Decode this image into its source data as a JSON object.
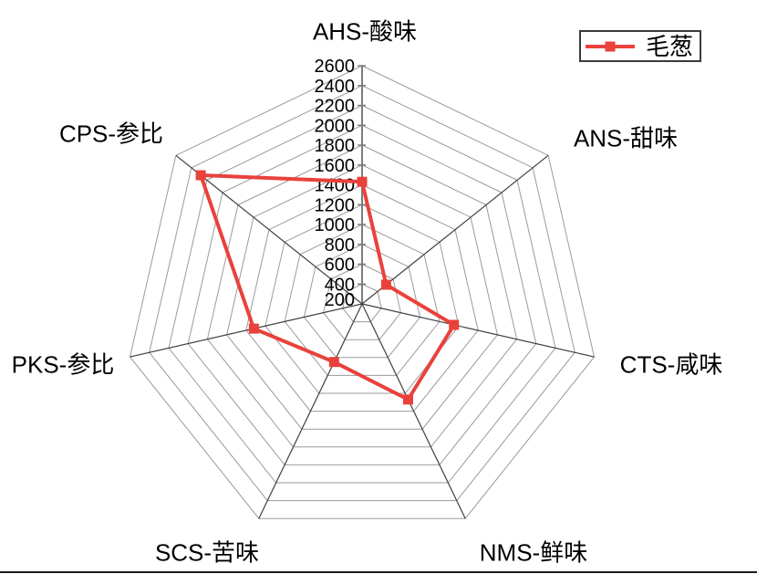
{
  "figure": {
    "background": "#ffffff",
    "kind": "radar-web-plot"
  },
  "legend": {
    "label": "毛葱",
    "position": "top-right"
  },
  "colors": {
    "series": "#e9413c",
    "ring_grid": "#9a9a9a",
    "spoke": "#3f3f3f",
    "radial_axis": "#7d7d7d",
    "text": "#000000",
    "bottom_rule": "#1c1c1c"
  },
  "chart_data": {
    "type": "radar",
    "title": "",
    "categories": [
      "AHS-酸味",
      "ANS-甜味",
      "CTS-咸味",
      "NMS-鲜味",
      "SCS-苦味",
      "PKS-参比",
      "CPS-参比"
    ],
    "series": [
      {
        "name": "毛葱",
        "color": "#e9413c",
        "marker": "filled-square",
        "values": [
          1430,
          510,
          1150,
          1270,
          850,
          1320,
          2280
        ]
      }
    ],
    "r_axis": {
      "min": 200,
      "max": 2600,
      "step": 200,
      "ticks": [
        200,
        400,
        600,
        800,
        1000,
        1200,
        1400,
        1600,
        1800,
        2000,
        2200,
        2400,
        2600
      ]
    },
    "grid": {
      "shape": "polygon-web",
      "rings": 12,
      "ring_color": "#9a9a9a",
      "spoke_color": "#3f3f3f",
      "axis_color": "#7d7d7d"
    },
    "legend_position": "top-right"
  }
}
